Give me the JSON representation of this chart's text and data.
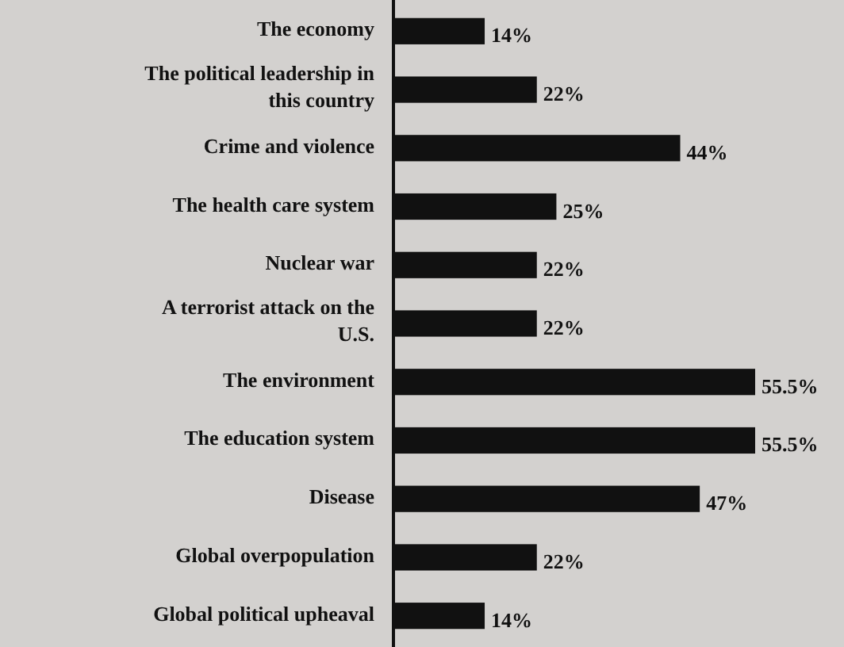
{
  "chart_data": {
    "type": "bar",
    "orientation": "horizontal",
    "categories": [
      "The economy",
      "The political leadership in this country",
      "Crime and violence",
      "The health care system",
      "Nuclear war",
      "A terrorist attack on the U.S.",
      "The environment",
      "The education system",
      "Disease",
      "Global overpopulation",
      "Global political upheaval"
    ],
    "values": [
      14,
      22,
      44,
      25,
      22,
      22,
      55.5,
      55.5,
      47,
      22,
      14
    ],
    "value_labels": [
      "14%",
      "22%",
      "44%",
      "25%",
      "22%",
      "22%",
      "55.5%",
      "55.5%",
      "47%",
      "22%",
      "14%"
    ],
    "color": "#111111"
  }
}
